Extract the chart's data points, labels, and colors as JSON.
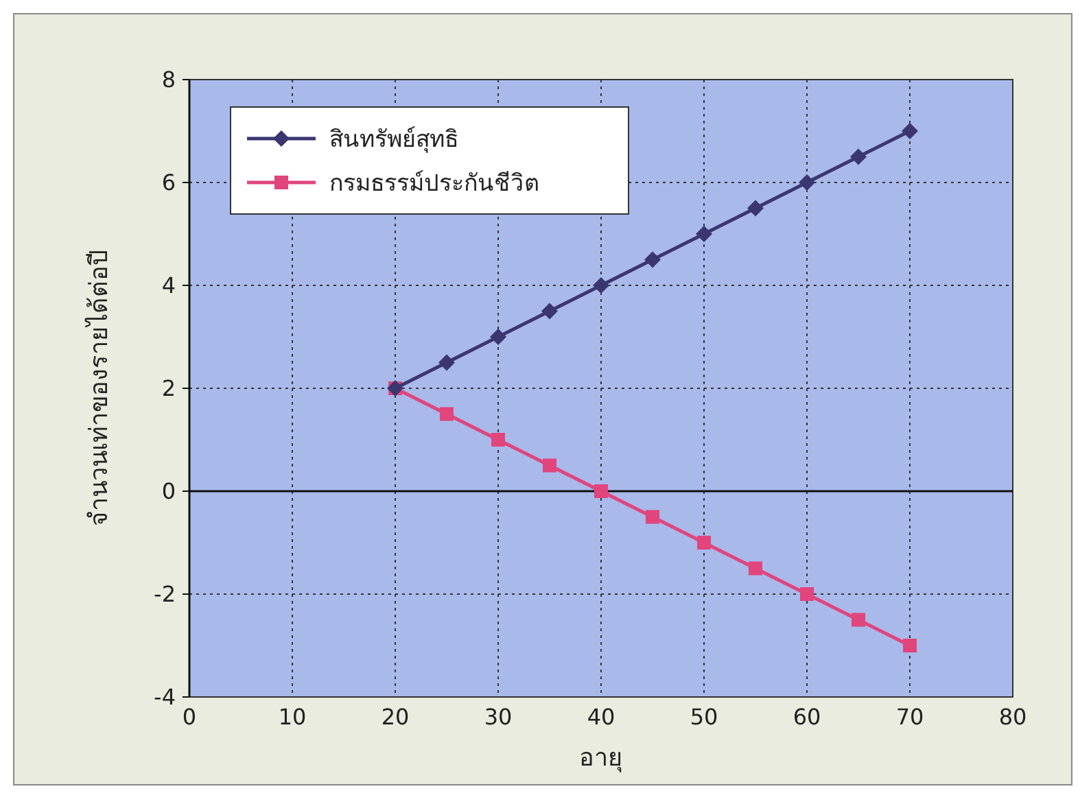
{
  "chart_data": {
    "type": "line",
    "xlabel": "อายุ",
    "ylabel": "จำนวนเท่าของรายได้ต่อปี",
    "x": [
      20,
      25,
      30,
      35,
      40,
      45,
      50,
      55,
      60,
      65,
      70
    ],
    "series": [
      {
        "name": "สินทรัพย์สุทธิ",
        "color": "#3b3670",
        "marker": "diamond",
        "values": [
          2,
          2.5,
          3,
          3.5,
          4,
          4.5,
          5,
          5.5,
          6,
          6.5,
          7
        ]
      },
      {
        "name": "กรมธรรม์ประกันชีวิต",
        "color": "#e0457c",
        "marker": "square",
        "values": [
          2,
          1.5,
          1,
          0.5,
          0,
          -0.5,
          -1,
          -1.5,
          -2,
          -2.5,
          -3
        ]
      }
    ],
    "xlim": [
      0,
      80
    ],
    "xticks": [
      0,
      10,
      20,
      30,
      40,
      50,
      60,
      70,
      80
    ],
    "ylim": [
      -4,
      8
    ],
    "yticks": [
      -4,
      -2,
      0,
      2,
      4,
      6,
      8
    ],
    "grid": true,
    "legend": "top left",
    "line_style": "solid"
  }
}
